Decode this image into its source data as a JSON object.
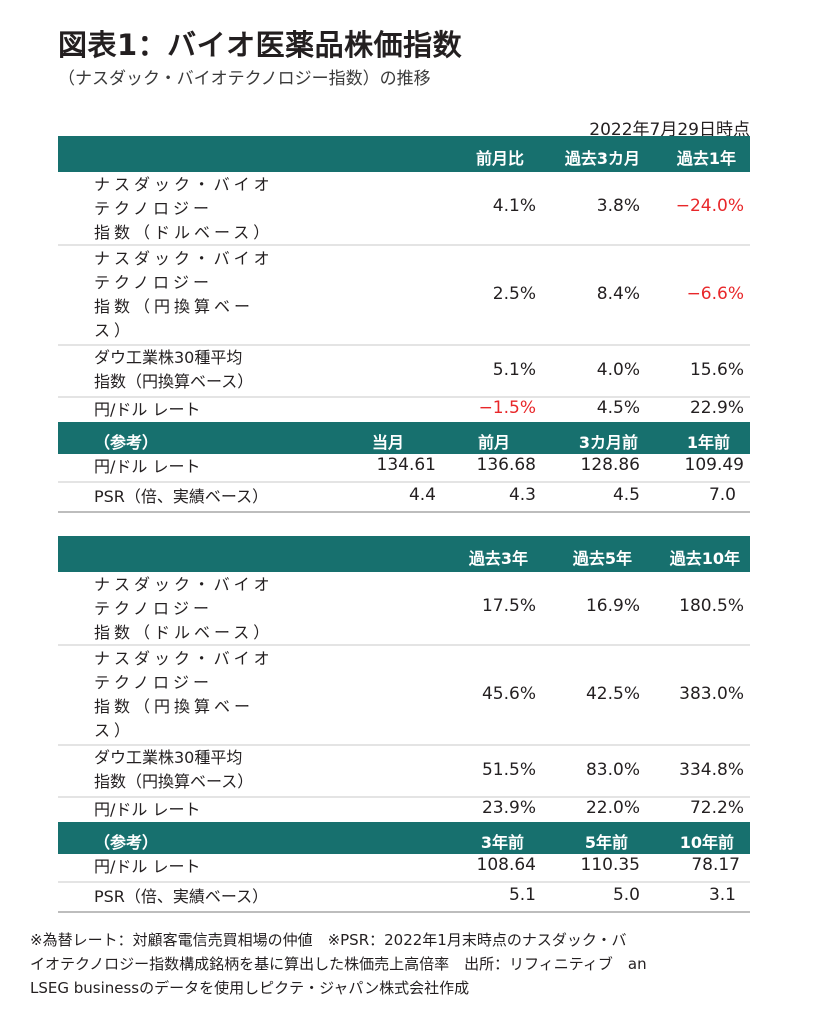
{
  "title": "図表1：バイオ医薬品株価指数",
  "subtitle": "（ナスダック・バイオテクノロジー指数）の推移",
  "date": "2022年7月29日時点",
  "table1": {
    "headers": [
      "前月比",
      "過去3カ月",
      "過去1年"
    ],
    "rows": [
      {
        "label": [
          "ナスダック・バイオ",
          "テクノロジー",
          "指数（ドルベース）"
        ],
        "values": [
          "4.1%",
          "3.8%",
          "−24.0%"
        ]
      },
      {
        "label": [
          "ナスダック・バイオ",
          "テクノロジー",
          "指数（円換算ベー",
          "ス）"
        ],
        "values": [
          "2.5%",
          "8.4%",
          "−6.6%"
        ]
      },
      {
        "label": [
          "ダウ工業株30種平均",
          "指数（円換算ベース）"
        ],
        "values": [
          "5.1%",
          "4.0%",
          "15.6%"
        ]
      },
      {
        "label": [
          "円/ドル レート"
        ],
        "values": [
          "−1.5%",
          "4.5%",
          "22.9%"
        ]
      }
    ],
    "ref_header": [
      "（参考）",
      "当月",
      "前月",
      "3カ月前",
      "1年前"
    ],
    "ref_rows": [
      {
        "label": "円/ドル レート",
        "values": [
          "134.61",
          "136.68",
          "128.86",
          "109.49"
        ]
      },
      {
        "label": "PSR（倍、実績ベース）",
        "values": [
          "4.4",
          "4.3",
          "4.5",
          "7.0"
        ]
      }
    ]
  },
  "table2": {
    "headers": [
      "過去3年",
      "過去5年",
      "過去10年"
    ],
    "rows": [
      {
        "label": [
          "ナスダック・バイオ",
          "テクノロジー",
          "指数（ドルベース）"
        ],
        "values": [
          "17.5%",
          "16.9%",
          "180.5%"
        ]
      },
      {
        "label": [
          "ナスダック・バイオ",
          "テクノロジー",
          "指数（円換算ベー",
          "ス）"
        ],
        "values": [
          "45.6%",
          "42.5%",
          "383.0%"
        ]
      },
      {
        "label": [
          "ダウ工業株30種平均",
          "指数（円換算ベース）"
        ],
        "values": [
          "51.5%",
          "83.0%",
          "334.8%"
        ]
      },
      {
        "label": [
          "円/ドル レート"
        ],
        "values": [
          "23.9%",
          "22.0%",
          "72.2%"
        ]
      }
    ],
    "ref_header": [
      "（参考）",
      "3年前",
      "5年前",
      "10年前"
    ],
    "ref_rows": [
      {
        "label": "円/ドル レート",
        "values": [
          "108.64",
          "110.35",
          "78.17"
        ]
      },
      {
        "label": "PSR（倍、実績ベース）",
        "values": [
          "5.1",
          "5.0",
          "3.1"
        ]
      }
    ]
  },
  "note": [
    "※為替レート：対顧客電信売買相場の仲値　※PSR：2022年1月末時点のナスダック・バ",
    "イオテクノロジー指数構成銘柄を基に算出した株価売上高倍率　出所：リフィニティブ　an",
    "LSEG businessのデータを使用しピクテ・ジャパン株式会社作成"
  ],
  "colors": {
    "header_bg": "#17706e",
    "negative": "#e8272a"
  }
}
